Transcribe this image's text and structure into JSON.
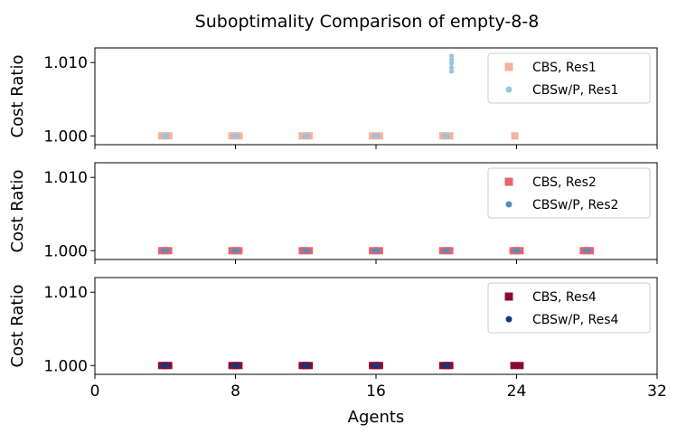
{
  "chart_data": {
    "type": "scatter",
    "title": "Suboptimality Comparison of empty-8-8",
    "xlabel": "Agents",
    "xlim": [
      0,
      32
    ],
    "xticks": [
      "0",
      "8",
      "16",
      "24",
      "32"
    ],
    "panels": [
      {
        "ylabel": "Cost Ratio",
        "ylim": [
          0.9988,
          1.012
        ],
        "yticks": [
          "1.000",
          "1.010"
        ],
        "legend_position": "upper right",
        "series": [
          {
            "name": "CBS, Res1",
            "marker": "square",
            "color": "#f7b09e",
            "points": [
              [
                3.8,
                1.0
              ],
              [
                4.0,
                1.0
              ],
              [
                4.2,
                1.0
              ],
              [
                7.8,
                1.0
              ],
              [
                8.0,
                1.0
              ],
              [
                8.2,
                1.0
              ],
              [
                11.8,
                1.0
              ],
              [
                12.0,
                1.0
              ],
              [
                12.2,
                1.0
              ],
              [
                15.8,
                1.0
              ],
              [
                16.0,
                1.0
              ],
              [
                16.2,
                1.0
              ],
              [
                19.8,
                1.0
              ],
              [
                20.0,
                1.0
              ],
              [
                20.2,
                1.0
              ],
              [
                23.9,
                1.0
              ]
            ]
          },
          {
            "name": "CBSw/P, Res1",
            "marker": "circle",
            "color": "#92c5de",
            "points": [
              [
                3.9,
                1.0
              ],
              [
                4.1,
                1.0
              ],
              [
                7.9,
                1.0
              ],
              [
                8.1,
                1.0
              ],
              [
                11.9,
                1.0
              ],
              [
                12.1,
                1.0
              ],
              [
                15.9,
                1.0
              ],
              [
                16.1,
                1.0
              ],
              [
                19.9,
                1.0
              ],
              [
                20.1,
                1.0
              ],
              [
                20.3,
                1.0109
              ],
              [
                20.3,
                1.0104
              ],
              [
                20.3,
                1.0099
              ],
              [
                20.3,
                1.0093
              ],
              [
                20.3,
                1.0088
              ]
            ]
          }
        ]
      },
      {
        "ylabel": "Cost Ratio",
        "ylim": [
          0.9988,
          1.012
        ],
        "yticks": [
          "1.000",
          "1.010"
        ],
        "legend_position": "upper right",
        "series": [
          {
            "name": "CBS, Res2",
            "marker": "square",
            "color": "#e8636e",
            "points": [
              [
                3.8,
                1.0
              ],
              [
                4.0,
                1.0
              ],
              [
                4.2,
                1.0
              ],
              [
                7.8,
                1.0
              ],
              [
                8.0,
                1.0
              ],
              [
                8.2,
                1.0
              ],
              [
                11.8,
                1.0
              ],
              [
                12.0,
                1.0
              ],
              [
                12.2,
                1.0
              ],
              [
                15.8,
                1.0
              ],
              [
                16.0,
                1.0
              ],
              [
                16.2,
                1.0
              ],
              [
                19.8,
                1.0
              ],
              [
                20.0,
                1.0
              ],
              [
                20.2,
                1.0
              ],
              [
                23.8,
                1.0
              ],
              [
                24.0,
                1.0
              ],
              [
                24.2,
                1.0
              ],
              [
                27.8,
                1.0
              ],
              [
                28.0,
                1.0
              ],
              [
                28.2,
                1.0
              ]
            ]
          },
          {
            "name": "CBSw/P, Res2",
            "marker": "circle",
            "color": "#5b8db8",
            "points": [
              [
                3.9,
                1.0
              ],
              [
                4.1,
                1.0
              ],
              [
                7.9,
                1.0
              ],
              [
                8.1,
                1.0
              ],
              [
                11.9,
                1.0
              ],
              [
                12.1,
                1.0
              ],
              [
                15.9,
                1.0
              ],
              [
                16.1,
                1.0
              ],
              [
                19.9,
                1.0
              ],
              [
                20.1,
                1.0
              ],
              [
                23.9,
                1.0
              ],
              [
                24.1,
                1.0
              ],
              [
                27.9,
                1.0
              ],
              [
                28.1,
                1.0
              ]
            ]
          }
        ]
      },
      {
        "ylabel": "Cost Ratio",
        "ylim": [
          0.9988,
          1.012
        ],
        "yticks": [
          "1.000",
          "1.010"
        ],
        "legend_position": "upper right",
        "series": [
          {
            "name": "CBS, Res4",
            "marker": "square",
            "color": "#8b0a35",
            "points": [
              [
                3.8,
                1.0
              ],
              [
                4.0,
                1.0
              ],
              [
                4.2,
                1.0
              ],
              [
                7.8,
                1.0
              ],
              [
                8.0,
                1.0
              ],
              [
                8.2,
                1.0
              ],
              [
                11.8,
                1.0
              ],
              [
                12.0,
                1.0
              ],
              [
                12.2,
                1.0
              ],
              [
                15.8,
                1.0
              ],
              [
                16.0,
                1.0
              ],
              [
                16.2,
                1.0
              ],
              [
                19.8,
                1.0
              ],
              [
                20.0,
                1.0
              ],
              [
                20.2,
                1.0
              ],
              [
                23.85,
                1.0
              ],
              [
                24.2,
                1.0
              ]
            ]
          },
          {
            "name": "CBSw/P, Res4",
            "marker": "circle",
            "color": "#0c3a80",
            "points": [
              [
                3.9,
                1.0
              ],
              [
                4.1,
                1.0
              ],
              [
                7.9,
                1.0
              ],
              [
                8.1,
                1.0
              ],
              [
                11.9,
                1.0
              ],
              [
                12.1,
                1.0
              ],
              [
                15.9,
                1.0
              ],
              [
                16.1,
                1.0
              ],
              [
                19.9,
                1.0
              ],
              [
                20.1,
                1.0
              ]
            ]
          }
        ]
      }
    ]
  }
}
